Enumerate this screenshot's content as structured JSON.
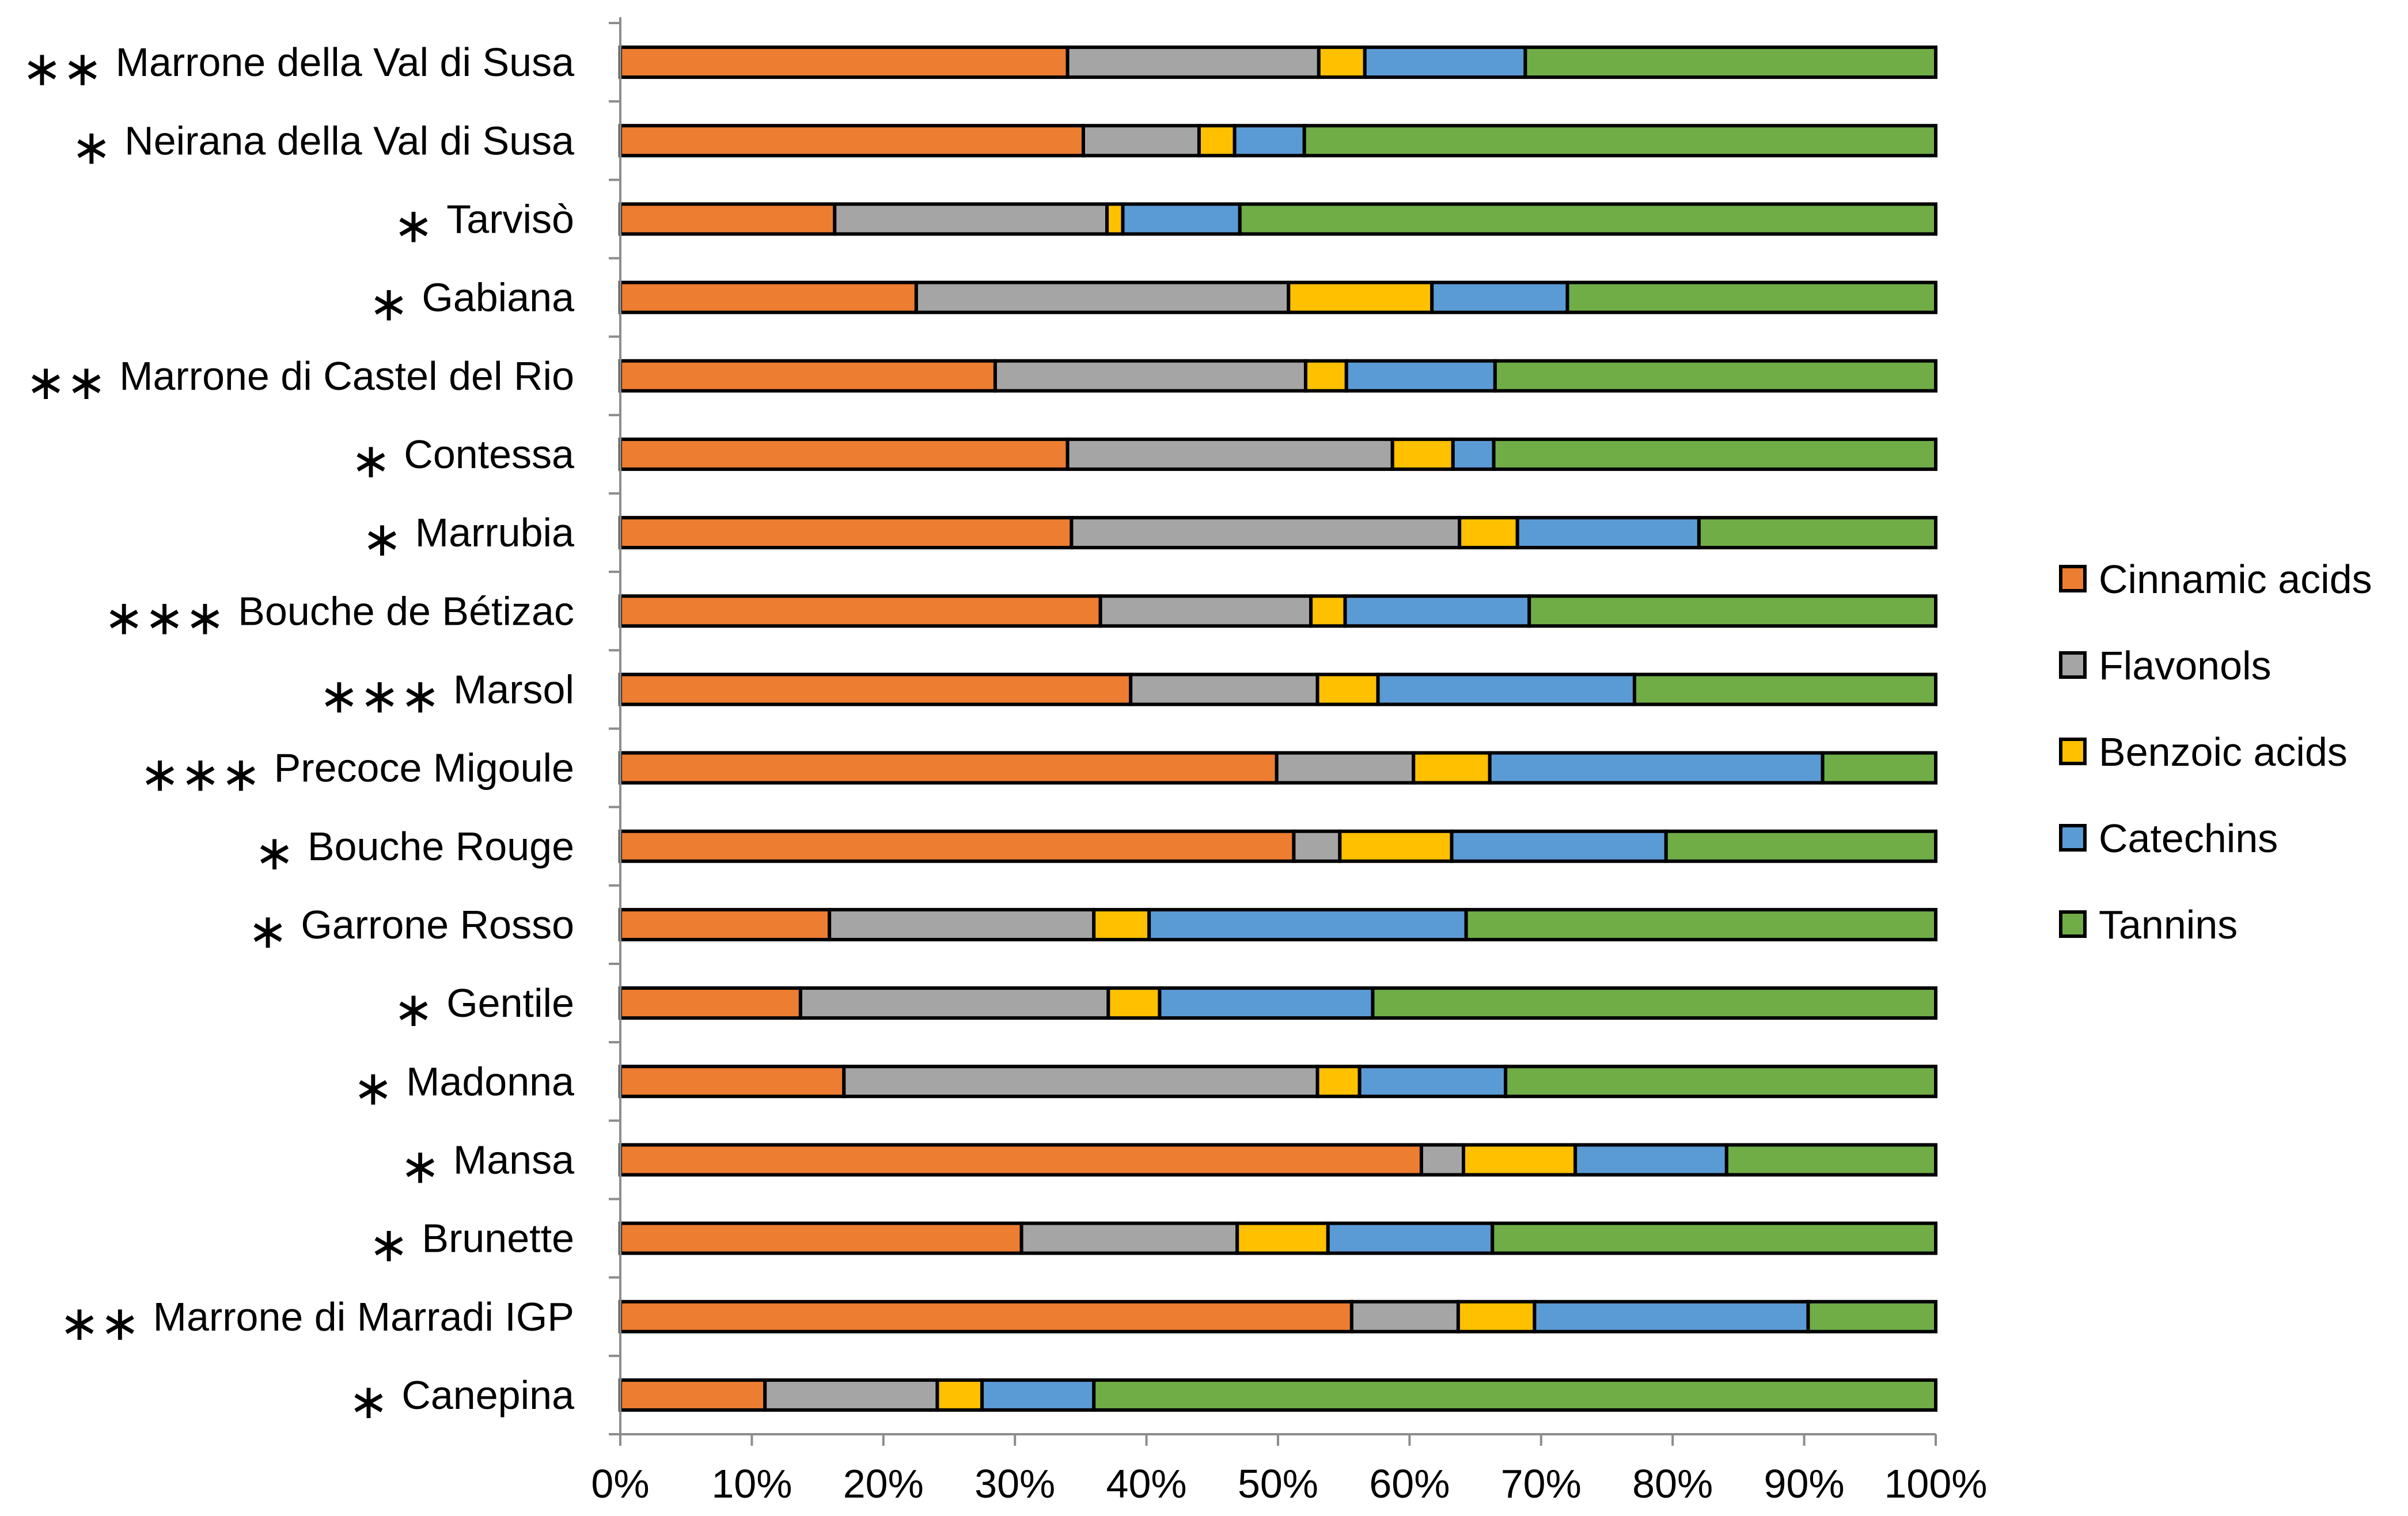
{
  "chart_data": {
    "type": "bar",
    "orientation": "horizontal",
    "stacking": "percent",
    "title": "",
    "xlabel": "",
    "ylabel": "",
    "xlim": [
      0,
      100
    ],
    "x_ticks": [
      "0%",
      "10%",
      "20%",
      "30%",
      "40%",
      "50%",
      "60%",
      "70%",
      "80%",
      "90%",
      "100%"
    ],
    "grid": false,
    "legend_position": "right",
    "categories": [
      {
        "label": "Marrone della Val di Susa",
        "stars": "**"
      },
      {
        "label": "Neirana della Val di Susa",
        "stars": "*"
      },
      {
        "label": "Tarvisò",
        "stars": "*"
      },
      {
        "label": "Gabiana",
        "stars": "*"
      },
      {
        "label": "Marrone di Castel del Rio",
        "stars": "**"
      },
      {
        "label": "Contessa",
        "stars": "*"
      },
      {
        "label": "Marrubia",
        "stars": "*"
      },
      {
        "label": "Bouche de Bétizac",
        "stars": "***"
      },
      {
        "label": "Marsol",
        "stars": "***"
      },
      {
        "label": "Precoce Migoule",
        "stars": "***"
      },
      {
        "label": "Bouche Rouge",
        "stars": "*"
      },
      {
        "label": "Garrone Rosso",
        "stars": "*"
      },
      {
        "label": "Gentile",
        "stars": "*"
      },
      {
        "label": "Madonna",
        "stars": "*"
      },
      {
        "label": "Mansa",
        "stars": "*"
      },
      {
        "label": "Brunette",
        "stars": "*"
      },
      {
        "label": "Marrone di Marradi IGP",
        "stars": "**"
      },
      {
        "label": "Canepina",
        "stars": "*"
      }
    ],
    "series": [
      {
        "name": "Cinnamic acids",
        "color": "#ED7D31",
        "values": [
          34.0,
          35.2,
          16.3,
          22.5,
          28.5,
          34.0,
          34.3,
          36.5,
          38.8,
          49.9,
          51.2,
          15.9,
          13.7,
          17.0,
          60.9,
          30.5,
          55.6,
          11.0
        ]
      },
      {
        "name": "Flavonols",
        "color": "#A5A5A5",
        "values": [
          19.1,
          8.8,
          20.7,
          28.3,
          23.6,
          24.7,
          29.5,
          16.0,
          14.2,
          10.4,
          3.5,
          20.1,
          23.4,
          36.0,
          3.2,
          16.4,
          8.1,
          13.1
        ]
      },
      {
        "name": "Benzoic acids",
        "color": "#FFC000",
        "values": [
          3.5,
          2.7,
          1.2,
          10.9,
          3.1,
          4.6,
          4.4,
          2.6,
          4.6,
          5.8,
          8.5,
          4.2,
          3.9,
          3.2,
          8.5,
          6.9,
          5.8,
          3.4
        ]
      },
      {
        "name": "Catechins",
        "color": "#5B9BD5",
        "values": [
          12.2,
          5.3,
          8.9,
          10.3,
          11.3,
          3.1,
          13.8,
          14.0,
          19.5,
          25.3,
          16.3,
          24.1,
          16.2,
          11.1,
          11.5,
          12.5,
          20.8,
          8.5
        ]
      },
      {
        "name": "Tannins",
        "color": "#70AD47",
        "values": [
          31.2,
          48.0,
          52.9,
          28.0,
          33.5,
          33.6,
          18.0,
          30.9,
          22.9,
          8.6,
          20.5,
          35.7,
          42.8,
          32.7,
          15.9,
          33.7,
          9.7,
          64.0
        ]
      }
    ]
  }
}
